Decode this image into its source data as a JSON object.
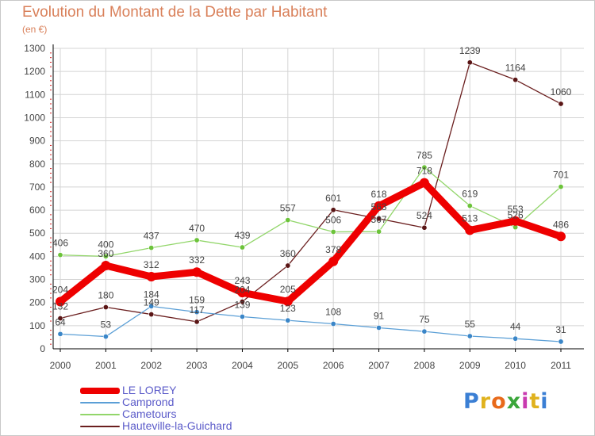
{
  "title": "Evolution du Montant de la Dette par Habitant",
  "subtitle": "(en €)",
  "logo": {
    "text": "Proxiti",
    "letter_colors": [
      "#3b7fd4",
      "#e0b21e",
      "#e86a1b",
      "#3aa63a",
      "#c93bb0",
      "#e0b21e",
      "#3b7fd4"
    ]
  },
  "colors": {
    "grid": "#d4d4d4",
    "axis": "#000000",
    "tick_dots": "#d62020",
    "label": "#444444"
  },
  "chart_data": {
    "type": "line",
    "x": [
      "2000",
      "2001",
      "2002",
      "2003",
      "2004",
      "2005",
      "2006",
      "2007",
      "2008",
      "2009",
      "2010",
      "2011"
    ],
    "ylim": [
      0,
      1300
    ],
    "yticks": [
      0,
      100,
      200,
      300,
      400,
      500,
      600,
      700,
      800,
      900,
      1000,
      1100,
      1200,
      1300
    ],
    "grid": true,
    "legend": "bottom-left",
    "series": [
      {
        "name": "Hauteville-la-Guichard",
        "color": "#6b1f1f",
        "marker": "#5a1515",
        "values": [
          132,
          180,
          149,
          117,
          204,
          360,
          601,
          563,
          524,
          1239,
          1164,
          1060
        ]
      },
      {
        "name": "Cametours",
        "color": "#92d66a",
        "marker": "#6cc33a",
        "values": [
          406,
          400,
          437,
          470,
          439,
          557,
          506,
          507,
          785,
          619,
          526,
          701
        ]
      },
      {
        "name": "Camprond",
        "color": "#5b9fd6",
        "marker": "#3a86c8",
        "values": [
          64,
          53,
          184,
          159,
          139,
          123,
          108,
          91,
          75,
          55,
          44,
          31
        ]
      },
      {
        "name": "LE LOREY",
        "color": "#ee0000",
        "marker": "#ee0000",
        "values": [
          204,
          360,
          312,
          332,
          243,
          205,
          378,
          618,
          718,
          513,
          553,
          486
        ]
      }
    ]
  }
}
